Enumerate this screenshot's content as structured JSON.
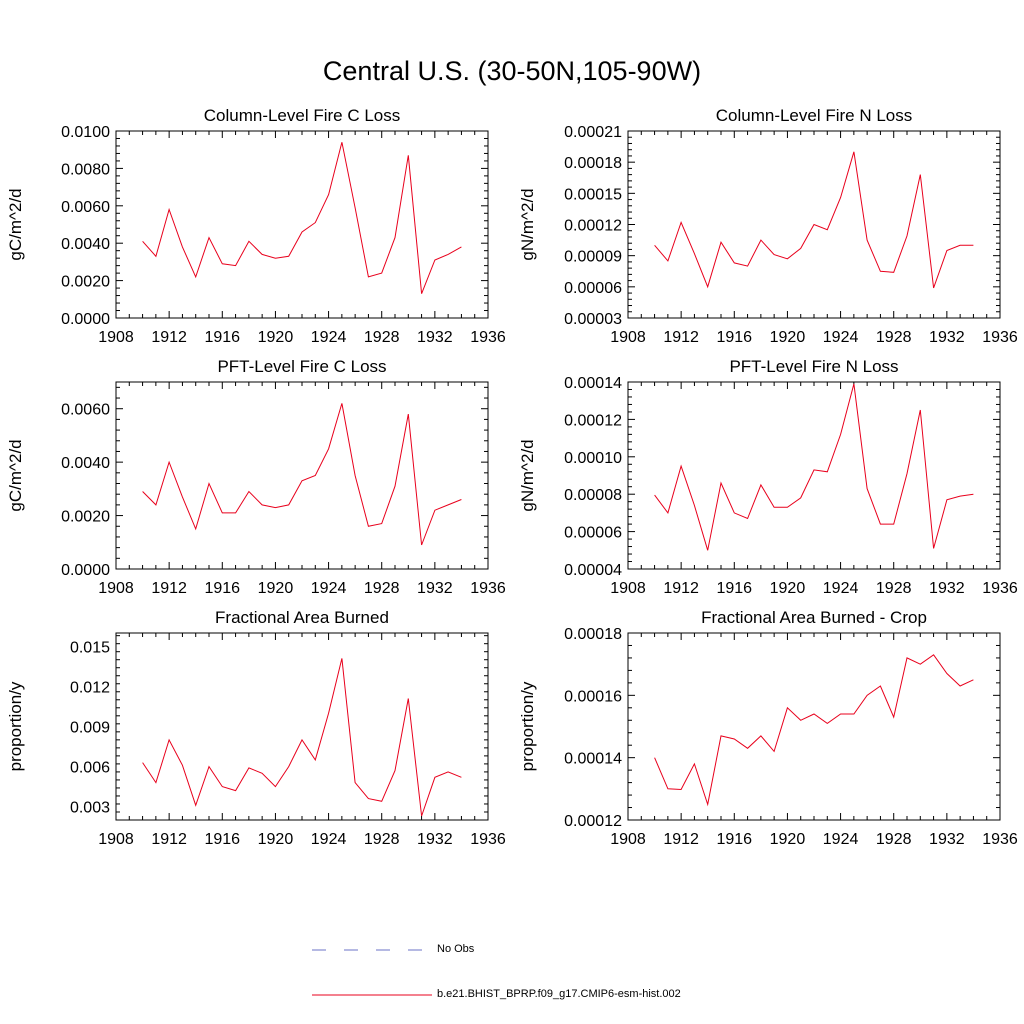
{
  "figure": {
    "title": "Central U.S. (30-50N,105-90W)"
  },
  "legend": {
    "entries": [
      {
        "label": "No Obs",
        "color": "#6b73c7",
        "dash": "dashed"
      },
      {
        "label": "b.e21.BHIST_BPRP.f09_g17.CMIP6-esm-hist.002",
        "color": "#e8001c",
        "dash": "solid"
      }
    ]
  },
  "chart_data": [
    {
      "type": "line",
      "title": "Column-Level Fire C Loss",
      "ylabel": "gC/m^2/d",
      "xlim": [
        1908,
        1936
      ],
      "ylim": [
        0,
        0.01
      ],
      "xticks": [
        "1908",
        "1912",
        "1916",
        "1920",
        "1924",
        "1928",
        "1932",
        "1936"
      ],
      "yticks": [
        "0.0000",
        "0.0020",
        "0.0040",
        "0.0060",
        "0.0080",
        "0.0100"
      ],
      "grid": false,
      "x": [
        1910,
        1911,
        1912,
        1913,
        1914,
        1915,
        1916,
        1917,
        1918,
        1919,
        1920,
        1921,
        1922,
        1923,
        1924,
        1925,
        1926,
        1927,
        1928,
        1929,
        1930,
        1931,
        1932,
        1933,
        1934
      ],
      "series": [
        {
          "name": "b.e21.BHIST_BPRP.f09_g17.CMIP6-esm-hist.002",
          "color": "#e8001c",
          "values": [
            0.0041,
            0.0033,
            0.0058,
            0.0038,
            0.0022,
            0.0043,
            0.0029,
            0.0028,
            0.0041,
            0.0034,
            0.0032,
            0.0033,
            0.0046,
            0.0051,
            0.0066,
            0.0094,
            0.0059,
            0.0022,
            0.0024,
            0.0043,
            0.0087,
            0.0013,
            0.0031,
            0.0034,
            0.0038
          ]
        }
      ]
    },
    {
      "type": "line",
      "title": "Column-Level Fire N Loss",
      "ylabel": "gN/m^2/d",
      "xlim": [
        1908,
        1936
      ],
      "ylim": [
        3e-05,
        0.00021
      ],
      "xticks": [
        "1908",
        "1912",
        "1916",
        "1920",
        "1924",
        "1928",
        "1932",
        "1936"
      ],
      "yticks": [
        "0.00003",
        "0.00006",
        "0.00009",
        "0.00012",
        "0.00015",
        "0.00018",
        "0.00021"
      ],
      "grid": false,
      "x": [
        1910,
        1911,
        1912,
        1913,
        1914,
        1915,
        1916,
        1917,
        1918,
        1919,
        1920,
        1921,
        1922,
        1923,
        1924,
        1925,
        1926,
        1927,
        1928,
        1929,
        1930,
        1931,
        1932,
        1933,
        1934
      ],
      "series": [
        {
          "name": "b.e21.BHIST_BPRP.f09_g17.CMIP6-esm-hist.002",
          "color": "#e8001c",
          "values": [
            0.0001,
            8.5e-05,
            0.000122,
            9.2e-05,
            6e-05,
            0.000103,
            8.3e-05,
            8e-05,
            0.000105,
            9.1e-05,
            8.7e-05,
            9.7e-05,
            0.00012,
            0.000115,
            0.000146,
            0.00019,
            0.000105,
            7.5e-05,
            7.4e-05,
            0.000109,
            0.000168,
            5.9e-05,
            9.5e-05,
            0.0001,
            0.0001
          ]
        }
      ]
    },
    {
      "type": "line",
      "title": "PFT-Level Fire C Loss",
      "ylabel": "gC/m^2/d",
      "xlim": [
        1908,
        1936
      ],
      "ylim": [
        0,
        0.007
      ],
      "xticks": [
        "1908",
        "1912",
        "1916",
        "1920",
        "1924",
        "1928",
        "1932",
        "1936"
      ],
      "yticks": [
        "0.0000",
        "0.0020",
        "0.0040",
        "0.0060"
      ],
      "grid": false,
      "x": [
        1910,
        1911,
        1912,
        1913,
        1914,
        1915,
        1916,
        1917,
        1918,
        1919,
        1920,
        1921,
        1922,
        1923,
        1924,
        1925,
        1926,
        1927,
        1928,
        1929,
        1930,
        1931,
        1932,
        1933,
        1934
      ],
      "series": [
        {
          "name": "b.e21.BHIST_BPRP.f09_g17.CMIP6-esm-hist.002",
          "color": "#e8001c",
          "values": [
            0.0029,
            0.0024,
            0.004,
            0.0027,
            0.0015,
            0.0032,
            0.0021,
            0.0021,
            0.0029,
            0.0024,
            0.0023,
            0.0024,
            0.0033,
            0.0035,
            0.0045,
            0.0062,
            0.0035,
            0.0016,
            0.0017,
            0.0031,
            0.0058,
            0.0009,
            0.0022,
            0.0024,
            0.0026
          ]
        }
      ]
    },
    {
      "type": "line",
      "title": "PFT-Level Fire N Loss",
      "ylabel": "gN/m^2/d",
      "xlim": [
        1908,
        1936
      ],
      "ylim": [
        4e-05,
        0.00014
      ],
      "xticks": [
        "1908",
        "1912",
        "1916",
        "1920",
        "1924",
        "1928",
        "1932",
        "1936"
      ],
      "yticks": [
        "0.00004",
        "0.00006",
        "0.00008",
        "0.00010",
        "0.00012",
        "0.00014"
      ],
      "grid": false,
      "x": [
        1910,
        1911,
        1912,
        1913,
        1914,
        1915,
        1916,
        1917,
        1918,
        1919,
        1920,
        1921,
        1922,
        1923,
        1924,
        1925,
        1926,
        1927,
        1928,
        1929,
        1930,
        1931,
        1932,
        1933,
        1934
      ],
      "series": [
        {
          "name": "b.e21.BHIST_BPRP.f09_g17.CMIP6-esm-hist.002",
          "color": "#e8001c",
          "values": [
            7.95e-05,
            7e-05,
            9.5e-05,
            7.4e-05,
            5e-05,
            8.6e-05,
            7e-05,
            6.7e-05,
            8.5e-05,
            7.3e-05,
            7.3e-05,
            7.8e-05,
            9.3e-05,
            9.2e-05,
            0.000112,
            0.000139,
            8.3e-05,
            6.4e-05,
            6.4e-05,
            9.1e-05,
            0.000125,
            5.1e-05,
            7.7e-05,
            7.9e-05,
            8e-05
          ]
        }
      ]
    },
    {
      "type": "line",
      "title": "Fractional Area Burned",
      "ylabel": "proportion/y",
      "xlim": [
        1908,
        1936
      ],
      "ylim": [
        0.002,
        0.016
      ],
      "xticks": [
        "1908",
        "1912",
        "1916",
        "1920",
        "1924",
        "1928",
        "1932",
        "1936"
      ],
      "yticks": [
        "0.003",
        "0.006",
        "0.009",
        "0.012",
        "0.015"
      ],
      "grid": false,
      "x": [
        1910,
        1911,
        1912,
        1913,
        1914,
        1915,
        1916,
        1917,
        1918,
        1919,
        1920,
        1921,
        1922,
        1923,
        1924,
        1925,
        1926,
        1927,
        1928,
        1929,
        1930,
        1931,
        1932,
        1933,
        1934
      ],
      "series": [
        {
          "name": "b.e21.BHIST_BPRP.f09_g17.CMIP6-esm-hist.002",
          "color": "#e8001c",
          "values": [
            0.0063,
            0.0048,
            0.008,
            0.0061,
            0.0031,
            0.006,
            0.0045,
            0.0042,
            0.0059,
            0.0055,
            0.0045,
            0.006,
            0.008,
            0.0065,
            0.01,
            0.0141,
            0.0048,
            0.0036,
            0.0034,
            0.0057,
            0.0111,
            0.0023,
            0.0052,
            0.0056,
            0.0052
          ]
        }
      ]
    },
    {
      "type": "line",
      "title": "Fractional Area Burned - Crop",
      "ylabel": "proportion/y",
      "xlim": [
        1908,
        1936
      ],
      "ylim": [
        0.00012,
        0.00018
      ],
      "xticks": [
        "1908",
        "1912",
        "1916",
        "1920",
        "1924",
        "1928",
        "1932",
        "1936"
      ],
      "yticks": [
        "0.00012",
        "0.00014",
        "0.00016",
        "0.00018"
      ],
      "grid": false,
      "x": [
        1910,
        1911,
        1912,
        1913,
        1914,
        1915,
        1916,
        1917,
        1918,
        1919,
        1920,
        1921,
        1922,
        1923,
        1924,
        1925,
        1926,
        1927,
        1928,
        1929,
        1930,
        1931,
        1932,
        1933,
        1934
      ],
      "series": [
        {
          "name": "b.e21.BHIST_BPRP.f09_g17.CMIP6-esm-hist.002",
          "color": "#e8001c",
          "values": [
            0.00014,
            0.00013,
            0.0001298,
            0.000138,
            0.000125,
            0.000147,
            0.000146,
            0.000143,
            0.000147,
            0.000142,
            0.000156,
            0.000152,
            0.000154,
            0.000151,
            0.000154,
            0.000154,
            0.00016,
            0.000163,
            0.000153,
            0.000172,
            0.00017,
            0.000173,
            0.000167,
            0.000163,
            0.000165
          ]
        }
      ]
    }
  ]
}
